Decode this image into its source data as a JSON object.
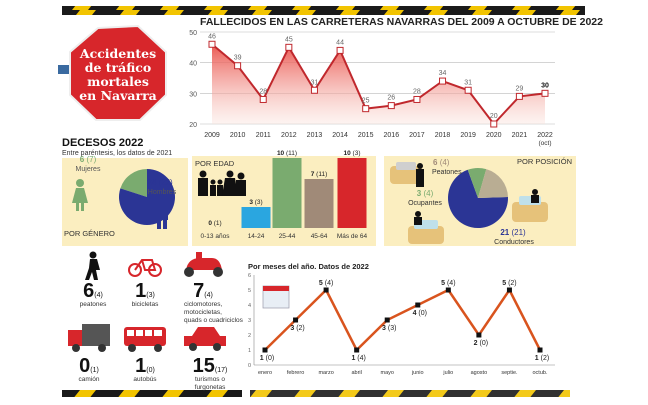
{
  "logo": {
    "lines": [
      "Accidentes",
      "de tráfico",
      "mortales",
      "en Navarra"
    ]
  },
  "colors": {
    "red": "#d7262b",
    "blue": "#2b3595",
    "green": "#7aab6f",
    "tan": "#b9ad93",
    "brown": "#a08a78",
    "cyan": "#2aa6e0",
    "panel": "#fbeec0",
    "stripe": "#f2c400"
  },
  "chart_data": [
    {
      "type": "area",
      "title": "FALLECIDOS EN LAS CARRETERAS NAVARRAS DEL 2009 A OCTUBRE DE 2022",
      "categories": [
        "2009",
        "2010",
        "2011",
        "2012",
        "2013",
        "2014",
        "2015",
        "2016",
        "2017",
        "2018",
        "2019",
        "2020",
        "2021",
        "2022"
      ],
      "category_note": "(oct)",
      "values": [
        46,
        39,
        28,
        45,
        31,
        44,
        25,
        26,
        28,
        34,
        31,
        20,
        29,
        30
      ],
      "yticks": [
        20,
        30,
        40,
        50
      ],
      "ylim": [
        20,
        50
      ],
      "grid": true
    },
    {
      "type": "pie",
      "title": "POR GÉNERO",
      "slices": [
        {
          "label": "Mujeres",
          "value": 6,
          "prev": "(7)",
          "color": "#7aab6f"
        },
        {
          "label": "Hombres",
          "value": 24,
          "prev": "(22)",
          "color": "#2b3595"
        }
      ]
    },
    {
      "type": "bar",
      "title": "POR EDAD",
      "categories": [
        "0-13 años",
        "14-24",
        "25-44",
        "45-64",
        "Más de 64"
      ],
      "values": [
        0,
        3,
        10,
        7,
        10
      ],
      "prev": [
        "(1)",
        "(3)",
        "(11)",
        "(11)",
        "(3)"
      ],
      "colors": [
        "#2aa6e0",
        "#2aa6e0",
        "#7aab6f",
        "#a08a78",
        "#d7262b"
      ]
    },
    {
      "type": "pie",
      "title": "POR POSICIÓN",
      "slices": [
        {
          "label": "Peatones",
          "value": 6,
          "prev": "(4)",
          "color": "#b9ad93"
        },
        {
          "label": "Ocupantes",
          "value": 3,
          "prev": "(4)",
          "color": "#7aab6f"
        },
        {
          "label": "Conductores",
          "value": 21,
          "prev": "(21)",
          "color": "#2b3595"
        }
      ]
    },
    {
      "type": "line",
      "title": "Por meses del año. Datos de 2022",
      "categories": [
        "enero",
        "febrero",
        "marzo",
        "abril",
        "mayo",
        "junio",
        "julio",
        "agosto",
        "septie.",
        "octub."
      ],
      "values": [
        1,
        3,
        5,
        1,
        3,
        4,
        5,
        2,
        5,
        1
      ],
      "prev": [
        "(0)",
        "(2)",
        "(4)",
        "(4)",
        "(3)",
        "(0)",
        "(4)",
        "(0)",
        "(2)",
        "(2)"
      ],
      "yticks": [
        0,
        1,
        2,
        3,
        4,
        5,
        6
      ],
      "ylim": [
        0,
        6
      ]
    }
  ],
  "decesos": {
    "title": "DECESOS 2022",
    "subtitle": "Entre paréntesis, los datos de 2021"
  },
  "vehicles": [
    {
      "icon": "pedestrian-icon",
      "value": "6",
      "prev": "(4)",
      "label": "peatones"
    },
    {
      "icon": "bicycle-icon",
      "value": "1",
      "prev": "(3)",
      "label": "bicicletas"
    },
    {
      "icon": "scooter-icon",
      "value": "7",
      "prev": "(4)",
      "label": "ciclomotores, motocicletas, quads o cuadriciclos"
    },
    {
      "icon": "truck-icon",
      "value": "0",
      "prev": "(1)",
      "label": "camión"
    },
    {
      "icon": "bus-icon",
      "value": "1",
      "prev": "(0)",
      "label": "autobús"
    },
    {
      "icon": "car-icon",
      "value": "15",
      "prev": "(17)",
      "label": "turismos o furgonetas"
    }
  ]
}
